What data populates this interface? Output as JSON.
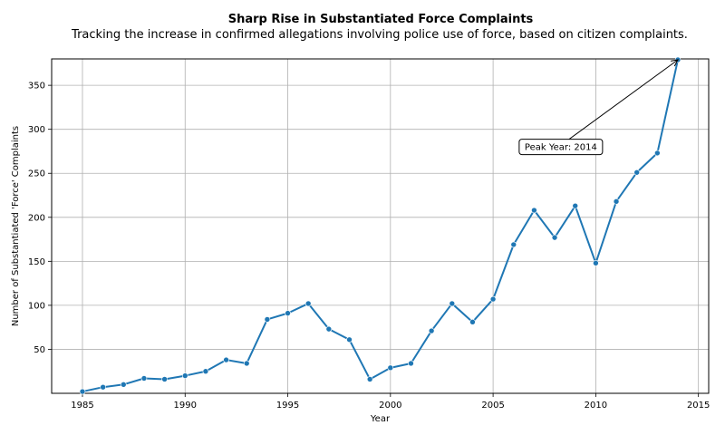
{
  "chart_data": {
    "type": "line",
    "title": "Sharp Rise in Substantiated Force Complaints",
    "subtitle": "Tracking the increase in confirmed allegations involving police use of force, based on citizen complaints.",
    "xlabel": "Year",
    "ylabel": "Number of Substantiated 'Force' Complaints",
    "xlim": [
      1983.5,
      2015.5
    ],
    "ylim": [
      0,
      380
    ],
    "xticks": [
      1985,
      1990,
      1995,
      2000,
      2005,
      2010,
      2015
    ],
    "yticks": [
      50,
      100,
      150,
      200,
      250,
      300,
      350
    ],
    "grid": true,
    "color": "#1f77b4",
    "x": [
      1985,
      1986,
      1987,
      1988,
      1989,
      1990,
      1991,
      1992,
      1993,
      1994,
      1995,
      1996,
      1997,
      1998,
      1999,
      2000,
      2001,
      2002,
      2003,
      2004,
      2005,
      2006,
      2007,
      2008,
      2009,
      2010,
      2011,
      2012,
      2013,
      2014
    ],
    "y": [
      2,
      7,
      10,
      17,
      16,
      20,
      25,
      38,
      34,
      84,
      91,
      102,
      73,
      61,
      16,
      29,
      34,
      71,
      102,
      81,
      107,
      169,
      208,
      177,
      213,
      148,
      218,
      251,
      273,
      379
    ],
    "annotation": {
      "text": "Peak Year: 2014",
      "x": 2014,
      "y": 379
    }
  }
}
